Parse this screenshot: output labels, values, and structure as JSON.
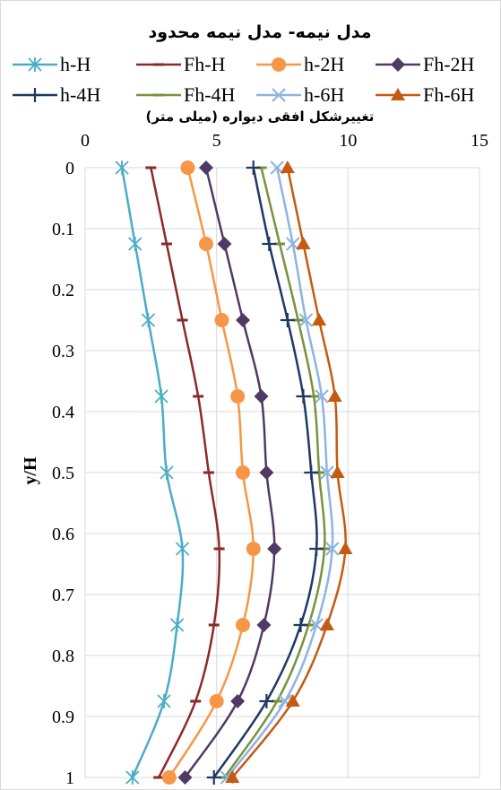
{
  "chart_data": {
    "type": "line",
    "title": "مدل نیمه- مدل نیمه محدود",
    "xlabel": "تغییرشکل افقی دیواره (میلی متر)",
    "ylabel": "y/H",
    "xlim": [
      0,
      15
    ],
    "ylim": [
      0,
      1
    ],
    "y_reversed": true,
    "x_axis_position": "top",
    "x_ticks": [
      "0",
      "5",
      "10",
      "15"
    ],
    "y_ticks": [
      "0",
      "0.1",
      "0.2",
      "0.3",
      "0.4",
      "0.5",
      "0.6",
      "0.7",
      "0.8",
      "0.9",
      "1"
    ],
    "grid": true,
    "legend_position": "top",
    "y": [
      0,
      0.125,
      0.25,
      0.375,
      0.5,
      0.625,
      0.75,
      0.875,
      1
    ],
    "series": [
      {
        "name": "h-H",
        "color": "#4bacc6",
        "marker": "asterisk",
        "x": [
          1.4,
          1.9,
          2.4,
          2.9,
          3.1,
          3.7,
          3.5,
          3.0,
          1.8
        ]
      },
      {
        "name": "Fh-H",
        "color": "#8b2a2a",
        "marker": "dash",
        "x": [
          2.5,
          3.1,
          3.7,
          4.3,
          4.7,
          5.1,
          4.9,
          4.2,
          2.8
        ]
      },
      {
        "name": "h-2H",
        "color": "#f79646",
        "marker": "circle",
        "x": [
          3.9,
          4.6,
          5.2,
          5.8,
          6.0,
          6.4,
          6.0,
          5.0,
          3.2
        ]
      },
      {
        "name": "Fh-2H",
        "color": "#4f3a66",
        "marker": "diamond",
        "x": [
          4.6,
          5.3,
          6.0,
          6.7,
          6.9,
          7.2,
          6.8,
          5.8,
          3.8
        ]
      },
      {
        "name": "Fh-4H",
        "color": "#77933c",
        "marker": "dash",
        "x": [
          6.7,
          7.4,
          8.1,
          8.7,
          8.9,
          9.1,
          8.5,
          7.3,
          5.3
        ]
      },
      {
        "name": "h-6H",
        "color": "#8eb4e3",
        "marker": "x",
        "x": [
          7.3,
          7.9,
          8.4,
          9.0,
          9.2,
          9.4,
          8.8,
          7.6,
          5.4
        ]
      },
      {
        "name": "Fh-6H",
        "color": "#c55a11",
        "marker": "triangle",
        "x": [
          7.7,
          8.3,
          8.9,
          9.5,
          9.6,
          9.9,
          9.2,
          7.9,
          5.6
        ]
      },
      {
        "name": "h-4H",
        "color": "#1f3864",
        "marker": "plus",
        "x": [
          6.4,
          7.0,
          7.7,
          8.3,
          8.6,
          8.8,
          8.2,
          6.9,
          4.9
        ]
      }
    ]
  }
}
